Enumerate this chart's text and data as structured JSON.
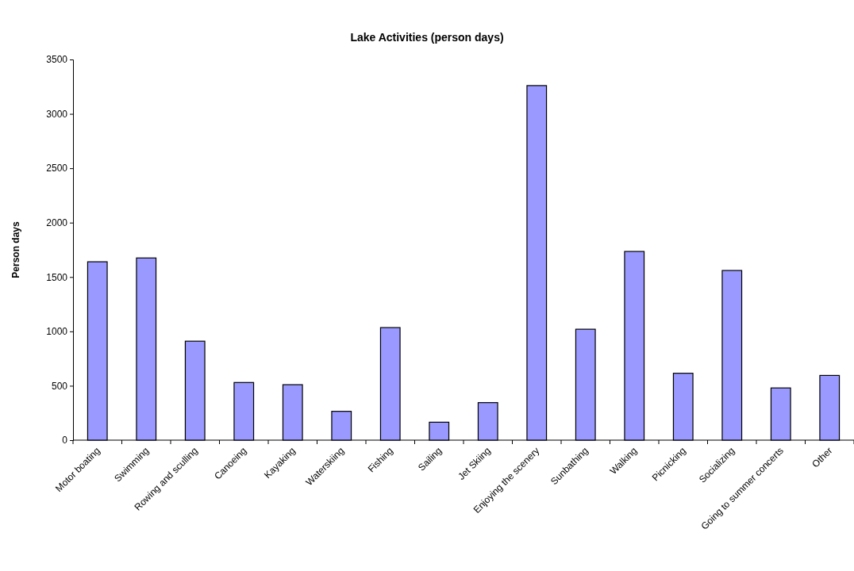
{
  "chart_data": {
    "type": "bar",
    "title": "Lake Activities (person days)",
    "ylabel": "Person days",
    "categories": [
      "Motor boating",
      "Swimming",
      "Rowing and sculling",
      "Canoeing",
      "Kayaking",
      "Waterskiing",
      "Fishing",
      "Sailing",
      "Jet Skiing",
      "Enjoying the scenery",
      "Sunbathing",
      "Walking",
      "Picnicking",
      "Socializing",
      "Going to summer concerts",
      "Other"
    ],
    "values": [
      1640,
      1675,
      910,
      530,
      510,
      265,
      1035,
      165,
      345,
      3260,
      1020,
      1735,
      615,
      1560,
      480,
      595
    ],
    "color": "#9999ff",
    "ylim": [
      0,
      3500
    ],
    "yticks": [
      0,
      500,
      1000,
      1500,
      2000,
      2500,
      3000,
      3500
    ],
    "grid": false
  }
}
